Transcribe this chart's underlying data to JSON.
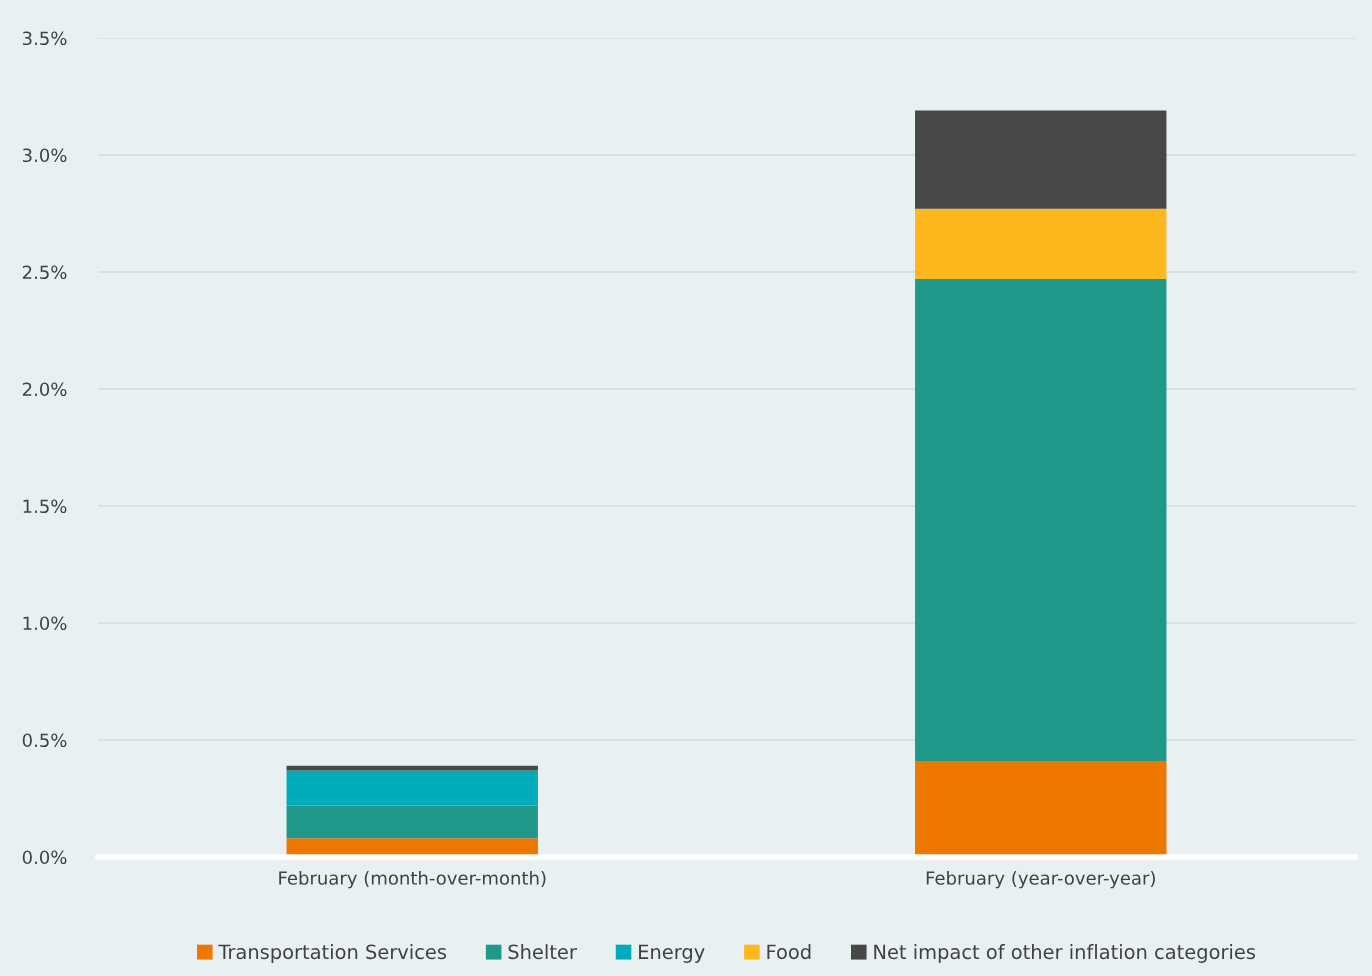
{
  "chart_data": {
    "type": "bar",
    "stacked": true,
    "categories": [
      "February (month-over-month)",
      "February (year-over-year)"
    ],
    "series": [
      {
        "name": "Transportation Services",
        "color": "#ee7700",
        "values": [
          0.08,
          0.41
        ]
      },
      {
        "name": "Shelter",
        "color": "#20988a",
        "values": [
          0.14,
          2.06
        ]
      },
      {
        "name": "Energy",
        "color": "#00abba",
        "values": [
          0.15,
          0
        ]
      },
      {
        "name": "Food",
        "color": "#feb71d",
        "values": [
          0,
          0.3
        ]
      },
      {
        "name": "Net impact of other inflation categories",
        "color": "#474747",
        "values": [
          0.02,
          0.42
        ]
      }
    ],
    "ylim": [
      0,
      3.5
    ],
    "yticks": [
      {
        "value": 0,
        "label": "0.0%"
      },
      {
        "value": 0.5,
        "label": "0.5%"
      },
      {
        "value": 1,
        "label": "1.0%"
      },
      {
        "value": 1.5,
        "label": "1.5%"
      },
      {
        "value": 2,
        "label": "2.0%"
      },
      {
        "value": 2.5,
        "label": "2.5%"
      },
      {
        "value": 3,
        "label": "3.0%"
      },
      {
        "value": 3.5,
        "label": "3.5%"
      }
    ],
    "grid": "y",
    "legend": "bottom"
  }
}
